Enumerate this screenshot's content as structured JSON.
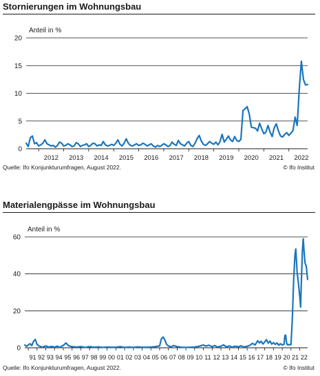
{
  "chart_data": [
    {
      "type": "line",
      "title": "Stornierungen im Wohnungsbau",
      "ylabel": "Anteil in %",
      "xlabel": "",
      "ylim": [
        0,
        20
      ],
      "yticks": [
        0,
        5,
        10,
        15,
        20
      ],
      "xlim": [
        2011.5,
        2022.75
      ],
      "xtick_labels": [
        "2012",
        "2013",
        "2014",
        "2015",
        "2016",
        "2017",
        "2018",
        "2019",
        "2020",
        "2021",
        "2022"
      ],
      "grid": "horizontal",
      "line_color": "#1a75bc",
      "source": "Quelle: Ifo Konjunkturumfragen, August 2022.",
      "credit": "© Ifo Institut",
      "series": [
        {
          "points": [
            [
              2011.5,
              1.0
            ],
            [
              2011.583,
              0.4
            ],
            [
              2011.667,
              2.0
            ],
            [
              2011.75,
              2.3
            ],
            [
              2011.833,
              0.9
            ],
            [
              2011.917,
              1.1
            ],
            [
              2012.0,
              0.5
            ],
            [
              2012.083,
              0.7
            ],
            [
              2012.167,
              1.0
            ],
            [
              2012.25,
              1.6
            ],
            [
              2012.333,
              0.9
            ],
            [
              2012.417,
              0.7
            ],
            [
              2012.5,
              0.5
            ],
            [
              2012.583,
              0.6
            ],
            [
              2012.667,
              0.3
            ],
            [
              2012.75,
              0.6
            ],
            [
              2012.833,
              1.2
            ],
            [
              2012.917,
              1.0
            ],
            [
              2013.0,
              0.5
            ],
            [
              2013.083,
              0.6
            ],
            [
              2013.167,
              0.9
            ],
            [
              2013.25,
              0.7
            ],
            [
              2013.333,
              0.4
            ],
            [
              2013.417,
              0.5
            ],
            [
              2013.5,
              1.1
            ],
            [
              2013.583,
              0.9
            ],
            [
              2013.667,
              0.4
            ],
            [
              2013.75,
              0.6
            ],
            [
              2013.833,
              0.7
            ],
            [
              2013.917,
              0.9
            ],
            [
              2014.0,
              0.4
            ],
            [
              2014.083,
              0.6
            ],
            [
              2014.167,
              1.0
            ],
            [
              2014.25,
              0.9
            ],
            [
              2014.333,
              0.5
            ],
            [
              2014.417,
              0.7
            ],
            [
              2014.5,
              0.6
            ],
            [
              2014.583,
              1.3
            ],
            [
              2014.667,
              0.7
            ],
            [
              2014.75,
              0.5
            ],
            [
              2014.833,
              0.6
            ],
            [
              2014.917,
              0.8
            ],
            [
              2015.0,
              0.6
            ],
            [
              2015.083,
              1.0
            ],
            [
              2015.167,
              1.6
            ],
            [
              2015.25,
              0.8
            ],
            [
              2015.333,
              0.5
            ],
            [
              2015.417,
              1.0
            ],
            [
              2015.5,
              1.8
            ],
            [
              2015.583,
              1.0
            ],
            [
              2015.667,
              0.6
            ],
            [
              2015.75,
              0.5
            ],
            [
              2015.833,
              0.7
            ],
            [
              2015.917,
              0.9
            ],
            [
              2016.0,
              0.6
            ],
            [
              2016.083,
              0.7
            ],
            [
              2016.167,
              1.0
            ],
            [
              2016.25,
              0.8
            ],
            [
              2016.333,
              0.5
            ],
            [
              2016.417,
              0.7
            ],
            [
              2016.5,
              0.9
            ],
            [
              2016.583,
              0.5
            ],
            [
              2016.667,
              0.3
            ],
            [
              2016.75,
              0.6
            ],
            [
              2016.833,
              0.4
            ],
            [
              2016.917,
              0.6
            ],
            [
              2017.0,
              0.9
            ],
            [
              2017.083,
              0.7
            ],
            [
              2017.167,
              0.4
            ],
            [
              2017.25,
              0.6
            ],
            [
              2017.333,
              1.2
            ],
            [
              2017.417,
              0.8
            ],
            [
              2017.5,
              0.6
            ],
            [
              2017.583,
              1.5
            ],
            [
              2017.667,
              0.9
            ],
            [
              2017.75,
              0.7
            ],
            [
              2017.833,
              0.5
            ],
            [
              2017.917,
              1.0
            ],
            [
              2018.0,
              1.3
            ],
            [
              2018.083,
              0.6
            ],
            [
              2018.167,
              0.4
            ],
            [
              2018.25,
              1.0
            ],
            [
              2018.333,
              1.8
            ],
            [
              2018.417,
              2.4
            ],
            [
              2018.5,
              1.4
            ],
            [
              2018.583,
              0.8
            ],
            [
              2018.667,
              0.6
            ],
            [
              2018.75,
              0.9
            ],
            [
              2018.833,
              1.3
            ],
            [
              2018.917,
              1.0
            ],
            [
              2019.0,
              0.8
            ],
            [
              2019.083,
              1.2
            ],
            [
              2019.167,
              0.7
            ],
            [
              2019.25,
              1.3
            ],
            [
              2019.333,
              2.6
            ],
            [
              2019.417,
              1.2
            ],
            [
              2019.5,
              1.7
            ],
            [
              2019.583,
              2.3
            ],
            [
              2019.667,
              1.6
            ],
            [
              2019.75,
              1.3
            ],
            [
              2019.833,
              2.2
            ],
            [
              2019.917,
              1.5
            ],
            [
              2020.0,
              1.3
            ],
            [
              2020.083,
              1.7
            ],
            [
              2020.167,
              6.9
            ],
            [
              2020.25,
              7.2
            ],
            [
              2020.333,
              7.6
            ],
            [
              2020.417,
              6.3
            ],
            [
              2020.5,
              3.9
            ],
            [
              2020.583,
              3.8
            ],
            [
              2020.667,
              3.7
            ],
            [
              2020.75,
              3.2
            ],
            [
              2020.833,
              4.6
            ],
            [
              2020.917,
              3.6
            ],
            [
              2021.0,
              2.7
            ],
            [
              2021.083,
              3.0
            ],
            [
              2021.167,
              4.2
            ],
            [
              2021.25,
              3.0
            ],
            [
              2021.333,
              2.2
            ],
            [
              2021.417,
              3.8
            ],
            [
              2021.5,
              4.5
            ],
            [
              2021.583,
              3.2
            ],
            [
              2021.667,
              2.3
            ],
            [
              2021.75,
              2.1
            ],
            [
              2021.833,
              2.6
            ],
            [
              2021.917,
              2.9
            ],
            [
              2022.0,
              2.4
            ],
            [
              2022.083,
              2.8
            ],
            [
              2022.167,
              3.3
            ],
            [
              2022.25,
              5.7
            ],
            [
              2022.333,
              4.2
            ],
            [
              2022.417,
              10.8
            ],
            [
              2022.5,
              15.8
            ],
            [
              2022.583,
              12.5
            ],
            [
              2022.667,
              11.5
            ],
            [
              2022.75,
              11.6
            ]
          ]
        }
      ]
    },
    {
      "type": "line",
      "title": "Materialengpässe im Wohnungsbau",
      "ylabel": "Anteil in %",
      "xlabel": "",
      "ylim": [
        0,
        60
      ],
      "yticks": [
        0,
        20,
        40,
        60
      ],
      "xlim": [
        1990.6,
        2022.9
      ],
      "xtick_labels": [
        "91",
        "92",
        "93",
        "94",
        "95",
        "96",
        "97",
        "98",
        "99",
        "00",
        "01",
        "02",
        "03",
        "04",
        "05",
        "06",
        "07",
        "08",
        "09",
        "10",
        "11",
        "12",
        "13",
        "14",
        "15",
        "16",
        "17",
        "18",
        "19",
        "20",
        "21",
        "22"
      ],
      "grid": "horizontal",
      "line_color": "#1a75bc",
      "source": "Quelle: Ifo Konjunkturumfragen, August 2022.",
      "credit": "© Ifo Institut",
      "series": [
        {
          "points": [
            [
              1990.6,
              1.5
            ],
            [
              1990.8,
              0.8
            ],
            [
              1991.0,
              1.5
            ],
            [
              1991.2,
              2.2
            ],
            [
              1991.4,
              1.2
            ],
            [
              1991.6,
              3.5
            ],
            [
              1991.8,
              4.5
            ],
            [
              1992.0,
              1.8
            ],
            [
              1992.3,
              0.8
            ],
            [
              1992.6,
              0.3
            ],
            [
              1993.0,
              1.0
            ],
            [
              1993.3,
              0.4
            ],
            [
              1993.7,
              0.7
            ],
            [
              1994.0,
              0.3
            ],
            [
              1994.3,
              0.9
            ],
            [
              1994.6,
              0.2
            ],
            [
              1995.0,
              1.3
            ],
            [
              1995.3,
              2.6
            ],
            [
              1995.6,
              1.1
            ],
            [
              1996.0,
              0.6
            ],
            [
              1996.5,
              0.4
            ],
            [
              1997.0,
              0.6
            ],
            [
              1997.5,
              0.2
            ],
            [
              1998.0,
              0.6
            ],
            [
              1998.5,
              0.3
            ],
            [
              1999.0,
              0.5
            ],
            [
              1999.5,
              0.2
            ],
            [
              2000.0,
              0.4
            ],
            [
              2000.5,
              0.3
            ],
            [
              2001.0,
              0.3
            ],
            [
              2001.5,
              0.6
            ],
            [
              2002.0,
              0.2
            ],
            [
              2002.5,
              0.4
            ],
            [
              2003.0,
              0.2
            ],
            [
              2003.5,
              0.5
            ],
            [
              2004.0,
              0.3
            ],
            [
              2004.5,
              0.3
            ],
            [
              2005.0,
              0.4
            ],
            [
              2005.5,
              0.6
            ],
            [
              2006.0,
              1.0
            ],
            [
              2006.2,
              4.8
            ],
            [
              2006.4,
              5.8
            ],
            [
              2006.6,
              4.2
            ],
            [
              2006.8,
              1.8
            ],
            [
              2007.0,
              1.0
            ],
            [
              2007.3,
              0.5
            ],
            [
              2007.6,
              1.2
            ],
            [
              2008.0,
              0.6
            ],
            [
              2008.5,
              0.3
            ],
            [
              2009.0,
              0.2
            ],
            [
              2009.5,
              0.3
            ],
            [
              2010.0,
              0.4
            ],
            [
              2010.5,
              0.8
            ],
            [
              2011.0,
              1.5
            ],
            [
              2011.3,
              0.9
            ],
            [
              2011.6,
              1.4
            ],
            [
              2012.0,
              0.6
            ],
            [
              2012.3,
              1.2
            ],
            [
              2012.6,
              0.4
            ],
            [
              2013.0,
              0.8
            ],
            [
              2013.3,
              1.6
            ],
            [
              2013.6,
              0.5
            ],
            [
              2014.0,
              1.0
            ],
            [
              2014.3,
              0.3
            ],
            [
              2014.6,
              0.9
            ],
            [
              2015.0,
              0.5
            ],
            [
              2015.3,
              1.1
            ],
            [
              2015.6,
              0.4
            ],
            [
              2016.0,
              0.8
            ],
            [
              2016.3,
              1.3
            ],
            [
              2016.6,
              2.4
            ],
            [
              2016.9,
              1.5
            ],
            [
              2017.2,
              3.8
            ],
            [
              2017.4,
              2.6
            ],
            [
              2017.6,
              3.5
            ],
            [
              2017.8,
              2.0
            ],
            [
              2018.0,
              3.2
            ],
            [
              2018.2,
              4.4
            ],
            [
              2018.4,
              2.5
            ],
            [
              2018.6,
              3.6
            ],
            [
              2018.8,
              2.0
            ],
            [
              2019.0,
              2.8
            ],
            [
              2019.2,
              1.8
            ],
            [
              2019.4,
              2.6
            ],
            [
              2019.6,
              1.4
            ],
            [
              2019.8,
              2.2
            ],
            [
              2020.0,
              1.5
            ],
            [
              2020.2,
              1.8
            ],
            [
              2020.3,
              6.6
            ],
            [
              2020.4,
              6.8
            ],
            [
              2020.5,
              2.5
            ],
            [
              2020.6,
              1.6
            ],
            [
              2020.7,
              1.7
            ],
            [
              2020.8,
              1.5
            ],
            [
              2020.9,
              1.8
            ],
            [
              2021.0,
              1.7
            ],
            [
              2021.15,
              15.0
            ],
            [
              2021.3,
              36.0
            ],
            [
              2021.45,
              50.0
            ],
            [
              2021.55,
              53.5
            ],
            [
              2021.7,
              41.0
            ],
            [
              2021.85,
              35.0
            ],
            [
              2022.0,
              28.0
            ],
            [
              2022.1,
              22.0
            ],
            [
              2022.2,
              38.0
            ],
            [
              2022.3,
              52.0
            ],
            [
              2022.4,
              59.0
            ],
            [
              2022.5,
              52.0
            ],
            [
              2022.6,
              46.0
            ],
            [
              2022.75,
              44.0
            ],
            [
              2022.9,
              37.0
            ]
          ]
        }
      ]
    }
  ]
}
